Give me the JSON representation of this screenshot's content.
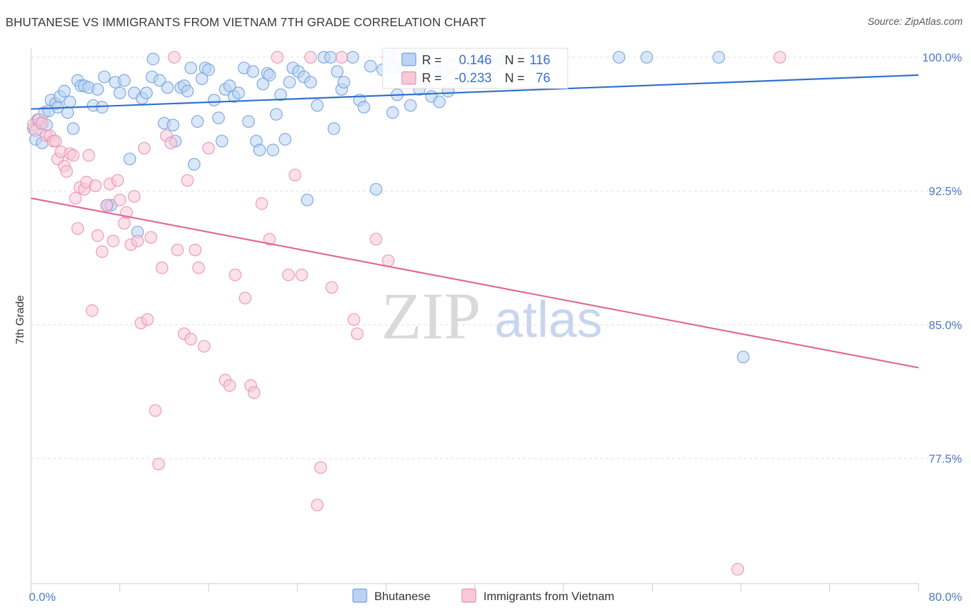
{
  "title": "BHUTANESE VS IMMIGRANTS FROM VIETNAM 7TH GRADE CORRELATION CHART",
  "source": "Source: ZipAtlas.com",
  "watermark": {
    "part1": "ZIP",
    "part2": "atlas"
  },
  "stats": {
    "r_label": "R =",
    "n_label": "N =",
    "series1": {
      "r": "0.146",
      "n": "116"
    },
    "series2": {
      "r": "-0.233",
      "n": "76"
    }
  },
  "colors": {
    "blue": "#6fa0e0",
    "blue_fill": "#bcd3f3",
    "blue_line": "#2f6fce",
    "pink": "#ec8fae",
    "pink_fill": "#f7c9d8",
    "pink_line": "#e06894",
    "grid": "#dddddd",
    "tick_text": "#4a78c8"
  },
  "chart_data": {
    "type": "scatter",
    "title": "BHUTANESE VS IMMIGRANTS FROM VIETNAM 7TH GRADE CORRELATION CHART",
    "xlabel": "",
    "ylabel": "7th Grade",
    "xlim": [
      0,
      80
    ],
    "ylim": [
      70.5,
      100.5
    ],
    "x_tick_labels": [
      "0.0%",
      "80.0%"
    ],
    "y_ticks": [
      77.5,
      85.0,
      92.5,
      100.0
    ],
    "y_tick_labels": [
      "77.5%",
      "85.0%",
      "92.5%",
      "100.0%"
    ],
    "grid": true,
    "legend_position": "bottom",
    "series": [
      {
        "name": "Bhutanese",
        "color": "#6fa0e0",
        "trend": {
          "x": [
            0,
            80
          ],
          "y": [
            97.1,
            99.0
          ]
        },
        "points": [
          [
            0.2,
            96.0
          ],
          [
            0.4,
            95.4
          ],
          [
            0.6,
            96.5
          ],
          [
            0.8,
            96.3
          ],
          [
            1.0,
            95.2
          ],
          [
            1.2,
            96.9
          ],
          [
            1.4,
            96.2
          ],
          [
            1.6,
            97.0
          ],
          [
            1.8,
            97.6
          ],
          [
            2.2,
            97.4
          ],
          [
            2.4,
            97.2
          ],
          [
            2.6,
            97.8
          ],
          [
            3.0,
            98.1
          ],
          [
            3.3,
            96.9
          ],
          [
            3.5,
            97.5
          ],
          [
            3.8,
            96.0
          ],
          [
            4.2,
            98.7
          ],
          [
            4.5,
            98.4
          ],
          [
            4.8,
            98.4
          ],
          [
            5.2,
            98.3
          ],
          [
            5.6,
            97.3
          ],
          [
            6.0,
            98.2
          ],
          [
            6.4,
            97.2
          ],
          [
            6.6,
            98.9
          ],
          [
            6.9,
            91.7
          ],
          [
            7.2,
            91.7
          ],
          [
            7.6,
            98.6
          ],
          [
            8.0,
            98.0
          ],
          [
            8.4,
            98.7
          ],
          [
            8.9,
            94.3
          ],
          [
            9.3,
            98.0
          ],
          [
            9.6,
            90.2
          ],
          [
            10.0,
            97.7
          ],
          [
            10.4,
            98.0
          ],
          [
            10.9,
            98.9
          ],
          [
            11.0,
            99.9
          ],
          [
            11.6,
            98.7
          ],
          [
            12.0,
            96.3
          ],
          [
            12.3,
            98.3
          ],
          [
            12.8,
            96.2
          ],
          [
            13.0,
            95.3
          ],
          [
            13.5,
            98.3
          ],
          [
            13.8,
            98.4
          ],
          [
            14.1,
            98.1
          ],
          [
            14.4,
            99.4
          ],
          [
            14.7,
            94.0
          ],
          [
            15.0,
            96.4
          ],
          [
            15.4,
            98.8
          ],
          [
            15.7,
            99.4
          ],
          [
            16.0,
            99.3
          ],
          [
            16.5,
            97.6
          ],
          [
            16.9,
            96.6
          ],
          [
            17.2,
            95.3
          ],
          [
            17.5,
            98.2
          ],
          [
            17.9,
            98.4
          ],
          [
            18.3,
            97.8
          ],
          [
            18.7,
            98.0
          ],
          [
            19.2,
            99.4
          ],
          [
            19.6,
            96.4
          ],
          [
            20.0,
            99.2
          ],
          [
            20.3,
            95.3
          ],
          [
            20.6,
            94.8
          ],
          [
            20.9,
            98.5
          ],
          [
            21.3,
            99.1
          ],
          [
            21.5,
            99.0
          ],
          [
            21.8,
            94.8
          ],
          [
            22.1,
            96.8
          ],
          [
            22.5,
            97.9
          ],
          [
            22.9,
            95.4
          ],
          [
            23.3,
            98.6
          ],
          [
            23.6,
            99.4
          ],
          [
            24.1,
            99.2
          ],
          [
            24.6,
            98.9
          ],
          [
            24.9,
            92.0
          ],
          [
            25.2,
            98.6
          ],
          [
            25.8,
            97.3
          ],
          [
            26.4,
            100.0
          ],
          [
            27.0,
            100.0
          ],
          [
            27.3,
            96.0
          ],
          [
            27.6,
            99.2
          ],
          [
            28.0,
            98.2
          ],
          [
            28.2,
            98.6
          ],
          [
            29.0,
            100.0
          ],
          [
            29.6,
            97.6
          ],
          [
            30.0,
            97.2
          ],
          [
            30.6,
            99.5
          ],
          [
            31.1,
            92.6
          ],
          [
            31.7,
            99.3
          ],
          [
            32.2,
            100.0
          ],
          [
            32.6,
            96.9
          ],
          [
            32.8,
            99.4
          ],
          [
            33.0,
            97.9
          ],
          [
            33.5,
            99.6
          ],
          [
            34.2,
            97.3
          ],
          [
            34.5,
            99.6
          ],
          [
            35.0,
            98.2
          ],
          [
            35.5,
            99.8
          ],
          [
            36.1,
            97.8
          ],
          [
            36.5,
            99.2
          ],
          [
            36.8,
            97.5
          ],
          [
            37.2,
            99.2
          ],
          [
            37.6,
            98.1
          ],
          [
            38.0,
            99.5
          ],
          [
            40.0,
            99.5
          ],
          [
            41.0,
            100.0
          ],
          [
            42.0,
            99.6
          ],
          [
            42.6,
            99.9
          ],
          [
            43.0,
            100.0
          ],
          [
            44.0,
            100.0
          ],
          [
            46.0,
            99.7
          ],
          [
            53.0,
            100.0
          ],
          [
            55.5,
            100.0
          ],
          [
            62.0,
            100.0
          ],
          [
            64.2,
            83.2
          ]
        ]
      },
      {
        "name": "Immigrants from Vietnam",
        "color": "#ec8fae",
        "trend": {
          "x": [
            0,
            80
          ],
          "y": [
            92.1,
            82.6
          ]
        },
        "points": [
          [
            0.2,
            96.2
          ],
          [
            0.4,
            95.9
          ],
          [
            0.7,
            96.5
          ],
          [
            1.0,
            96.3
          ],
          [
            1.4,
            95.6
          ],
          [
            1.7,
            95.6
          ],
          [
            2.0,
            95.3
          ],
          [
            2.2,
            95.3
          ],
          [
            2.4,
            94.3
          ],
          [
            2.7,
            94.7
          ],
          [
            3.0,
            93.9
          ],
          [
            3.2,
            93.6
          ],
          [
            3.5,
            94.6
          ],
          [
            3.8,
            94.5
          ],
          [
            4.0,
            92.1
          ],
          [
            4.2,
            90.4
          ],
          [
            4.4,
            92.7
          ],
          [
            4.8,
            92.6
          ],
          [
            5.0,
            93.0
          ],
          [
            5.2,
            94.5
          ],
          [
            5.5,
            85.8
          ],
          [
            5.8,
            92.8
          ],
          [
            6.0,
            90.0
          ],
          [
            6.4,
            89.1
          ],
          [
            6.8,
            91.7
          ],
          [
            7.1,
            92.9
          ],
          [
            7.4,
            89.7
          ],
          [
            7.8,
            93.1
          ],
          [
            8.0,
            92.0
          ],
          [
            8.4,
            90.7
          ],
          [
            8.6,
            91.3
          ],
          [
            9.0,
            89.5
          ],
          [
            9.3,
            92.2
          ],
          [
            9.6,
            89.7
          ],
          [
            9.9,
            85.1
          ],
          [
            10.2,
            94.9
          ],
          [
            10.5,
            85.3
          ],
          [
            10.8,
            89.9
          ],
          [
            11.2,
            80.2
          ],
          [
            11.5,
            77.2
          ],
          [
            11.8,
            88.2
          ],
          [
            12.2,
            95.6
          ],
          [
            12.6,
            95.2
          ],
          [
            12.9,
            100.0
          ],
          [
            13.2,
            89.2
          ],
          [
            13.8,
            84.5
          ],
          [
            14.1,
            93.1
          ],
          [
            14.4,
            84.2
          ],
          [
            14.8,
            89.2
          ],
          [
            15.1,
            88.2
          ],
          [
            15.6,
            83.8
          ],
          [
            16.0,
            94.9
          ],
          [
            17.5,
            81.9
          ],
          [
            17.9,
            81.6
          ],
          [
            18.4,
            87.8
          ],
          [
            19.3,
            86.5
          ],
          [
            19.8,
            81.6
          ],
          [
            20.1,
            81.2
          ],
          [
            20.8,
            91.8
          ],
          [
            21.5,
            89.8
          ],
          [
            22.2,
            100.0
          ],
          [
            23.2,
            87.8
          ],
          [
            23.8,
            93.4
          ],
          [
            24.4,
            87.8
          ],
          [
            25.2,
            100.0
          ],
          [
            25.8,
            74.9
          ],
          [
            26.1,
            77.0
          ],
          [
            27.1,
            87.1
          ],
          [
            28.0,
            100.0
          ],
          [
            29.1,
            85.3
          ],
          [
            29.4,
            84.5
          ],
          [
            31.1,
            89.8
          ],
          [
            32.2,
            88.6
          ],
          [
            33.0,
            100.0
          ],
          [
            63.7,
            71.3
          ],
          [
            67.5,
            100.0
          ]
        ]
      }
    ]
  },
  "legend": {
    "items": [
      {
        "label": "Bhutanese"
      },
      {
        "label": "Immigrants from Vietnam"
      }
    ]
  }
}
